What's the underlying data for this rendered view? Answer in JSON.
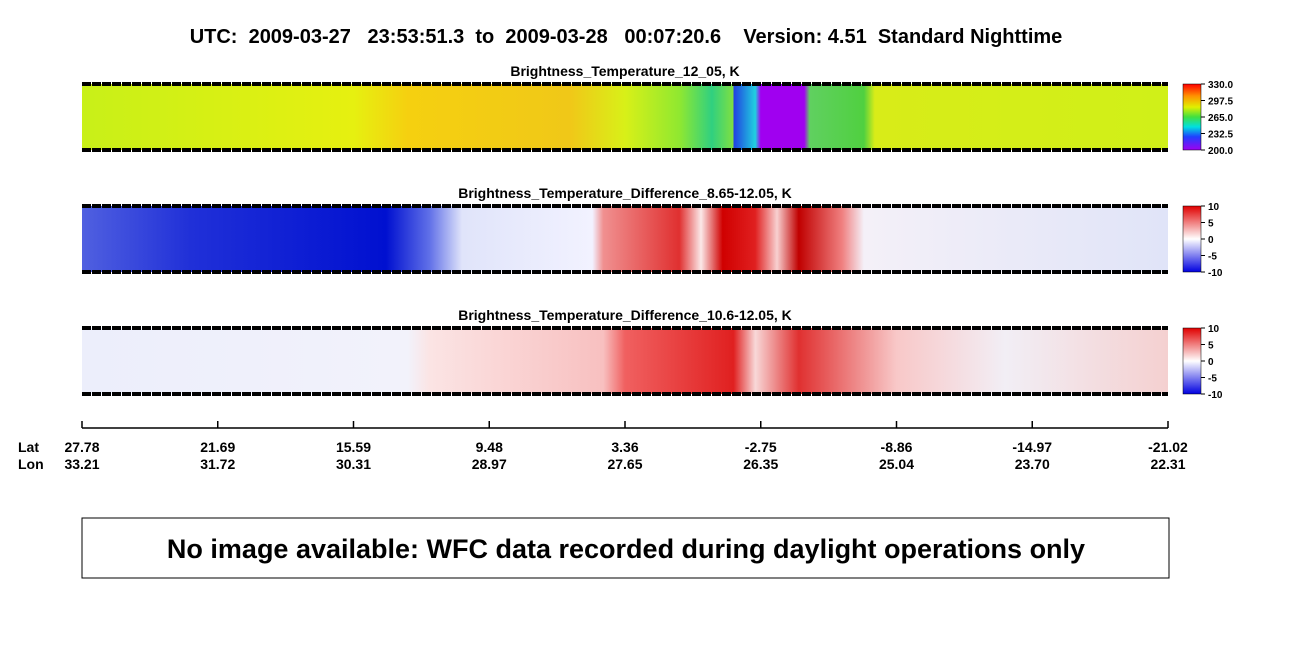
{
  "header": {
    "title": "UTC:  2009-03-27   23:53:51.3  to  2009-03-28   00:07:20.6    Version: 4.51  Standard Nighttime"
  },
  "panels": [
    {
      "title": "Brightness_Temperature_12_05, K",
      "colorbar_ticks": [
        "330.0",
        "297.5",
        "265.0",
        "232.5",
        "200.0"
      ]
    },
    {
      "title": "Brightness_Temperature_Difference_8.65-12.05, K",
      "colorbar_ticks": [
        "10",
        "5",
        "0",
        "-5",
        "-10"
      ]
    },
    {
      "title": "Brightness_Temperature_Difference_10.6-12.05, K",
      "colorbar_ticks": [
        "10",
        "5",
        "0",
        "-5",
        "-10"
      ]
    }
  ],
  "axis": {
    "lat_label": "Lat",
    "lon_label": "Lon",
    "lat": [
      "27.78",
      "21.69",
      "15.59",
      "9.48",
      "3.36",
      "-2.75",
      "-8.86",
      "-14.97",
      "-21.02"
    ],
    "lon": [
      "33.21",
      "31.72",
      "30.31",
      "28.97",
      "27.65",
      "26.35",
      "25.04",
      "23.70",
      "22.31"
    ]
  },
  "message": "No image available: WFC data recorded during daylight operations only"
}
